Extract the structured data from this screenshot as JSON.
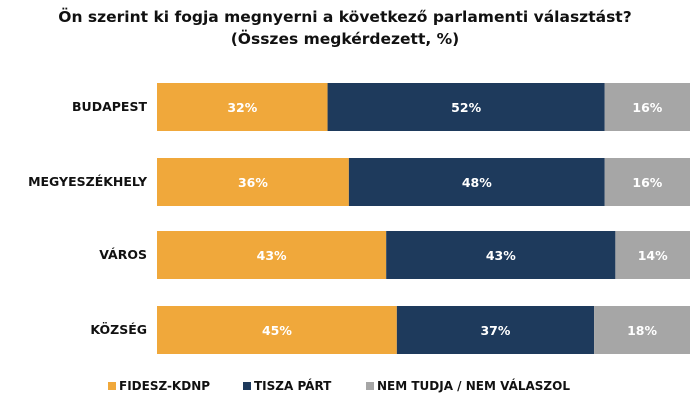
{
  "chart_data": {
    "type": "bar",
    "orientation": "horizontal",
    "stacked": true,
    "title": "Ön szerint ki fogja megnyerni a következő parlamenti választást?",
    "subtitle": "(Összes megkérdezett, %)",
    "categories": [
      "BUDAPEST",
      "MEGYESZÉKHELY",
      "VÁROS",
      "KÖZSÉG"
    ],
    "series": [
      {
        "name": "FIDESZ-KDNP",
        "color": "#F0A83B",
        "values": [
          32,
          36,
          43,
          45
        ]
      },
      {
        "name": "TISZA PÁRT",
        "color": "#1E3A5C",
        "values": [
          52,
          48,
          43,
          37
        ]
      },
      {
        "name": "NEM TUDJA / NEM VÁLASZOL",
        "color": "#A6A6A6",
        "values": [
          16,
          16,
          14,
          18
        ]
      }
    ],
    "value_suffix": "%",
    "xlim": [
      0,
      100
    ],
    "grid": false,
    "legend_position": "bottom"
  }
}
